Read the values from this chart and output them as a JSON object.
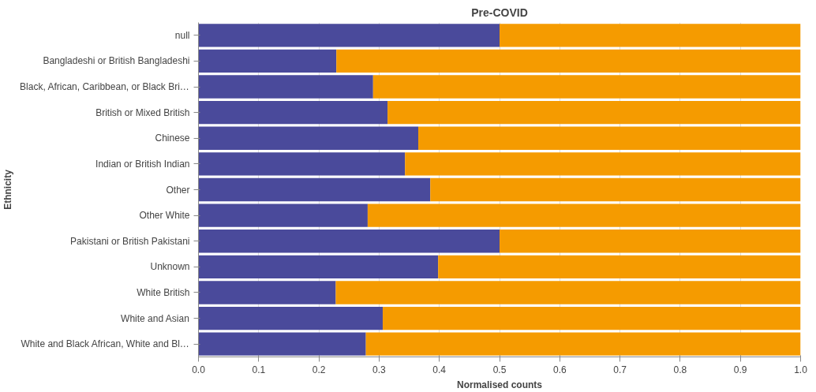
{
  "chart_data": {
    "type": "bar",
    "orientation": "horizontal",
    "stacked": true,
    "title": "Pre-COVID",
    "xlabel": "Normalised counts",
    "ylabel": "Ethnicity",
    "categories": [
      "null",
      "Bangladeshi or British Bangladeshi",
      "Black, African, Caribbean, or Black Bri…",
      "British or Mixed British",
      "Chinese",
      "Indian or British Indian",
      "Other",
      "Other White",
      "Pakistani or British Pakistani",
      "Unknown",
      "White British",
      "White and Asian",
      "White and Black African, White and Bl…"
    ],
    "series": [
      {
        "color": "#4a4a9b",
        "values": [
          0.5,
          0.229,
          0.29,
          0.314,
          0.365,
          0.343,
          0.385,
          0.281,
          0.5,
          0.398,
          0.228,
          0.306,
          0.278
        ]
      },
      {
        "color": "#f59b00",
        "values": [
          0.5,
          0.771,
          0.71,
          0.686,
          0.635,
          0.657,
          0.615,
          0.719,
          0.5,
          0.602,
          0.772,
          0.694,
          0.722
        ]
      }
    ],
    "xlim": [
      0,
      1
    ],
    "xticks": [
      {
        "value": 0,
        "label": "0.0"
      },
      0.1,
      0.2,
      0.3,
      0.4,
      0.5,
      0.6,
      0.7,
      0.8,
      0.9,
      {
        "value": 1,
        "label": "1.0"
      }
    ],
    "grid": "x"
  }
}
